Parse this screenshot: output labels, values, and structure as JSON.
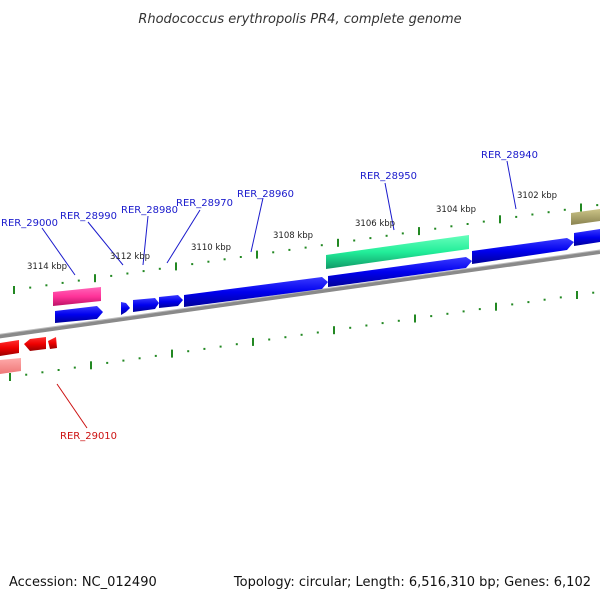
{
  "title": "Rhodococcus erythropolis PR4, complete genome",
  "footer": {
    "accession": "Accession: NC_012490",
    "summary": "Topology: circular; Length: 6,516,310 bp; Genes: 6,102"
  },
  "scale_labels": [
    "3102 kbp",
    "3104 kbp",
    "3106 kbp",
    "3108 kbp",
    "3110 kbp",
    "3112 kbp",
    "3114 kbp"
  ],
  "gene_labels": [
    "RER_29000",
    "RER_28990",
    "RER_28980",
    "RER_28970",
    "RER_28960",
    "RER_28950",
    "RER_28940",
    "RER_29010"
  ],
  "colors": {
    "forward_cds": "#0000ee",
    "reverse_cds": "#ee0000",
    "rna_green": "#22ee99",
    "pink": "#ff3399",
    "olive": "#aaa066",
    "backbone": "#888888",
    "ticks": "#228822"
  }
}
